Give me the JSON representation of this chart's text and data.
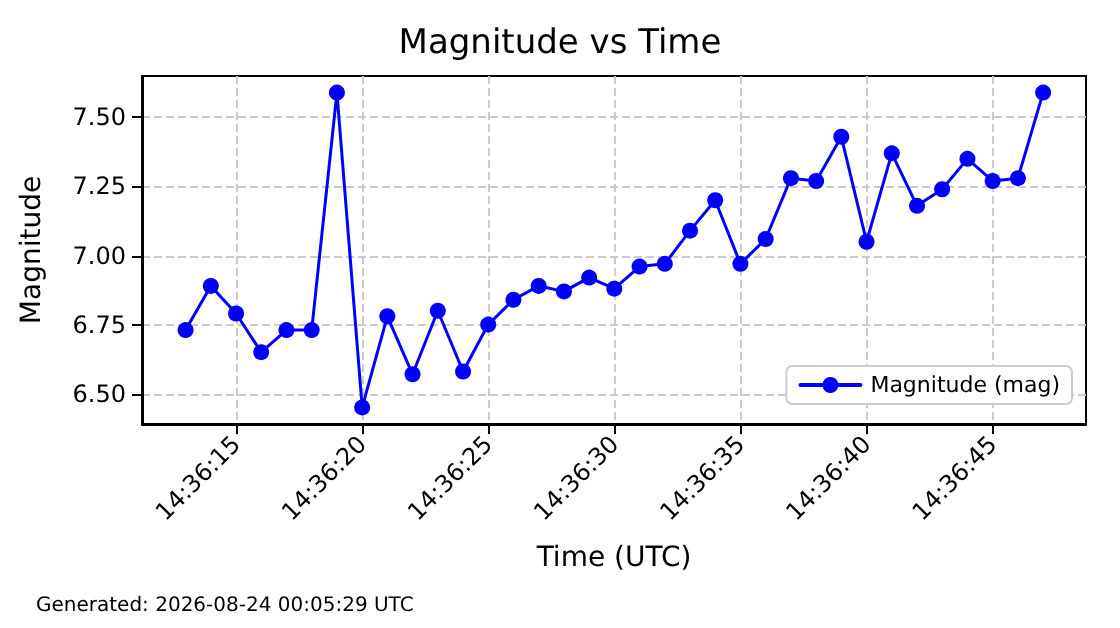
{
  "chart_data": {
    "type": "line",
    "title": "Magnitude vs Time",
    "xlabel": "Time (UTC)",
    "ylabel": "Magnitude",
    "annotations": [
      "Generated: 2026-08-24 00:05:29 UTC"
    ],
    "x": [
      14.603611,
      14.603889,
      14.604167,
      14.604444,
      14.604722,
      14.605,
      14.605278,
      14.605556,
      14.605833,
      14.606111,
      14.606389,
      14.606667,
      14.606944,
      14.607222,
      14.6075,
      14.607778,
      14.608056,
      14.608333,
      14.608611,
      14.608889,
      14.609167,
      14.609444,
      14.609722,
      14.61,
      14.610278,
      14.610556,
      14.610833,
      14.611111,
      14.611389,
      14.611667,
      14.611944,
      14.612222,
      14.6125,
      14.612778,
      14.613056
    ],
    "series": [
      {
        "name": "Magnitude (mag)",
        "color": "#0000ff",
        "values": [
          6.73,
          6.89,
          6.79,
          6.65,
          6.73,
          6.73,
          7.59,
          6.45,
          6.78,
          6.57,
          6.8,
          6.58,
          6.75,
          6.84,
          6.89,
          6.87,
          6.92,
          6.88,
          6.96,
          6.97,
          7.09,
          7.2,
          6.97,
          7.06,
          7.28,
          7.27,
          7.43,
          7.05,
          7.37,
          7.18,
          7.24,
          7.35,
          7.27,
          7.28,
          7.59
        ]
      }
    ],
    "xlim": [
      14.603131,
      14.613528
    ],
    "xticks": [
      {
        "value": 14.604167,
        "label": "14:36:15"
      },
      {
        "value": 14.605556,
        "label": "14:36:20"
      },
      {
        "value": 14.606944,
        "label": "14:36:25"
      },
      {
        "value": 14.608333,
        "label": "14:36:30"
      },
      {
        "value": 14.609722,
        "label": "14:36:35"
      },
      {
        "value": 14.611111,
        "label": "14:36:40"
      },
      {
        "value": 14.6125,
        "label": "14:36:45"
      }
    ],
    "ylim": [
      6.39,
      7.65
    ],
    "yticks": [
      {
        "value": 6.5,
        "label": "6.50"
      },
      {
        "value": 6.75,
        "label": "6.75"
      },
      {
        "value": 7.0,
        "label": "7.00"
      },
      {
        "value": 7.25,
        "label": "7.25"
      },
      {
        "value": 7.5,
        "label": "7.50"
      }
    ],
    "grid": true,
    "legend": "bottom right",
    "marker": "circle",
    "line_style": "solid"
  }
}
